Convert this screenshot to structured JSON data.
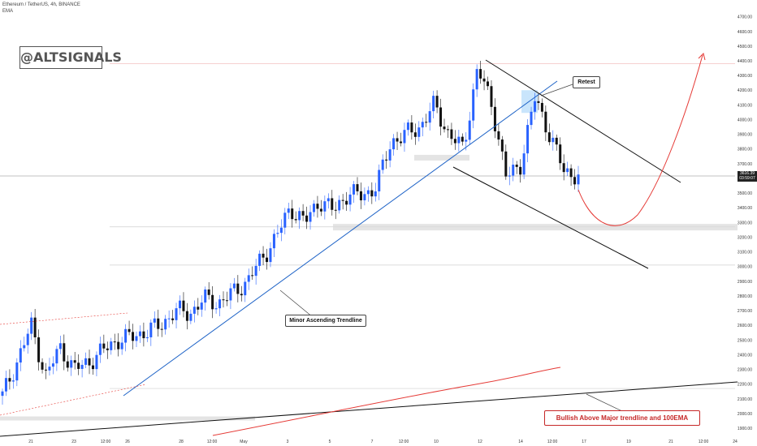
{
  "header": {
    "symbol_line": "Ethereum / TetherUS, 4h, BINANCE",
    "indicator": "EMA"
  },
  "brand": "@ALTSIGNALS",
  "annotations": {
    "retest": "Retest",
    "minor_trendline": "Minor Ascending Trendline",
    "bullish": "Bullish Above Major trendline and 100EMA"
  },
  "current_price": {
    "value": "3616.39",
    "countdown": "03:59:07"
  },
  "colors": {
    "up": "#2962ff",
    "down": "#111111",
    "trendline": "#1e63c7",
    "ema": "#e53935",
    "projection": "#e53935",
    "channel": "#111111"
  },
  "chart_data": {
    "type": "candlestick",
    "symbol": "ETHUSDT",
    "timeframe": "4h",
    "exchange": "BINANCE",
    "ylim": [
      1850,
      4750
    ],
    "y_ticks": [
      1900,
      2000,
      2100,
      2200,
      2300,
      2400,
      2500,
      2600,
      2700,
      2800,
      2900,
      3000,
      3100,
      3200,
      3300,
      3400,
      3500,
      3600,
      3700,
      3800,
      3900,
      4000,
      4100,
      4200,
      4300,
      4400,
      4500,
      4600,
      4700
    ],
    "x_ticks": [
      "21",
      "23",
      "12:00",
      "26",
      "28",
      "12:00",
      "May",
      "3",
      "5",
      "7",
      "12:00",
      "10",
      "12",
      "14",
      "12:00",
      "17",
      "19",
      "21",
      "12:00",
      "24"
    ],
    "close_approx": [
      2120,
      2350,
      2600,
      2250,
      2450,
      2300,
      2350,
      2430,
      2500,
      2520,
      2560,
      2600,
      2700,
      2680,
      2780,
      2750,
      2820,
      2900,
      3050,
      3200,
      3400,
      3300,
      3450,
      3380,
      3500,
      3480,
      3550,
      3850,
      3900,
      3950,
      4100,
      3900,
      3800,
      4350,
      4100,
      3600,
      3700,
      4150,
      3900,
      3650,
      3616
    ],
    "horizontal_levels": [
      4380,
      3270,
      3010,
      2170
    ],
    "current_price": 3616.39,
    "grid": false
  }
}
